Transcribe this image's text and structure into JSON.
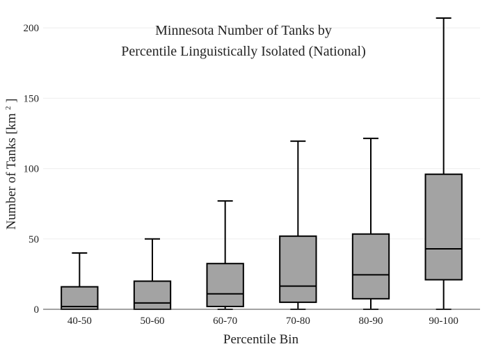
{
  "chart_data": {
    "type": "box",
    "title_lines": [
      "Minnesota Number of Tanks by",
      "Percentile Linguistically Isolated (National)"
    ],
    "xlabel": "Percentile Bin",
    "ylabel": "Number of Tanks",
    "ylabel_unit": "[km",
    "ylabel_unit_sup": "2",
    "ylabel_unit_close": "]",
    "ylim": [
      0,
      207
    ],
    "yticks": [
      0,
      50,
      100,
      150,
      200
    ],
    "grid": true,
    "categories": [
      "40-50",
      "50-60",
      "60-70",
      "70-80",
      "80-90",
      "90-100"
    ],
    "boxes": [
      {
        "min": 0,
        "q1": 0,
        "median": 2,
        "q3": 16,
        "max": 40
      },
      {
        "min": 0,
        "q1": 0,
        "median": 4.5,
        "q3": 20,
        "max": 50
      },
      {
        "min": 0,
        "q1": 2,
        "median": 11,
        "q3": 32.5,
        "max": 77
      },
      {
        "min": 0,
        "q1": 5,
        "median": 16.5,
        "q3": 52,
        "max": 119.5
      },
      {
        "min": 0,
        "q1": 7.5,
        "median": 24.5,
        "q3": 53.5,
        "max": 121.5
      },
      {
        "min": 0,
        "q1": 21,
        "median": 43,
        "q3": 96,
        "max": 207
      }
    ],
    "box_fill": "#a3a3a3",
    "line_color": "#000000",
    "grid_color": "#eeeeee"
  }
}
